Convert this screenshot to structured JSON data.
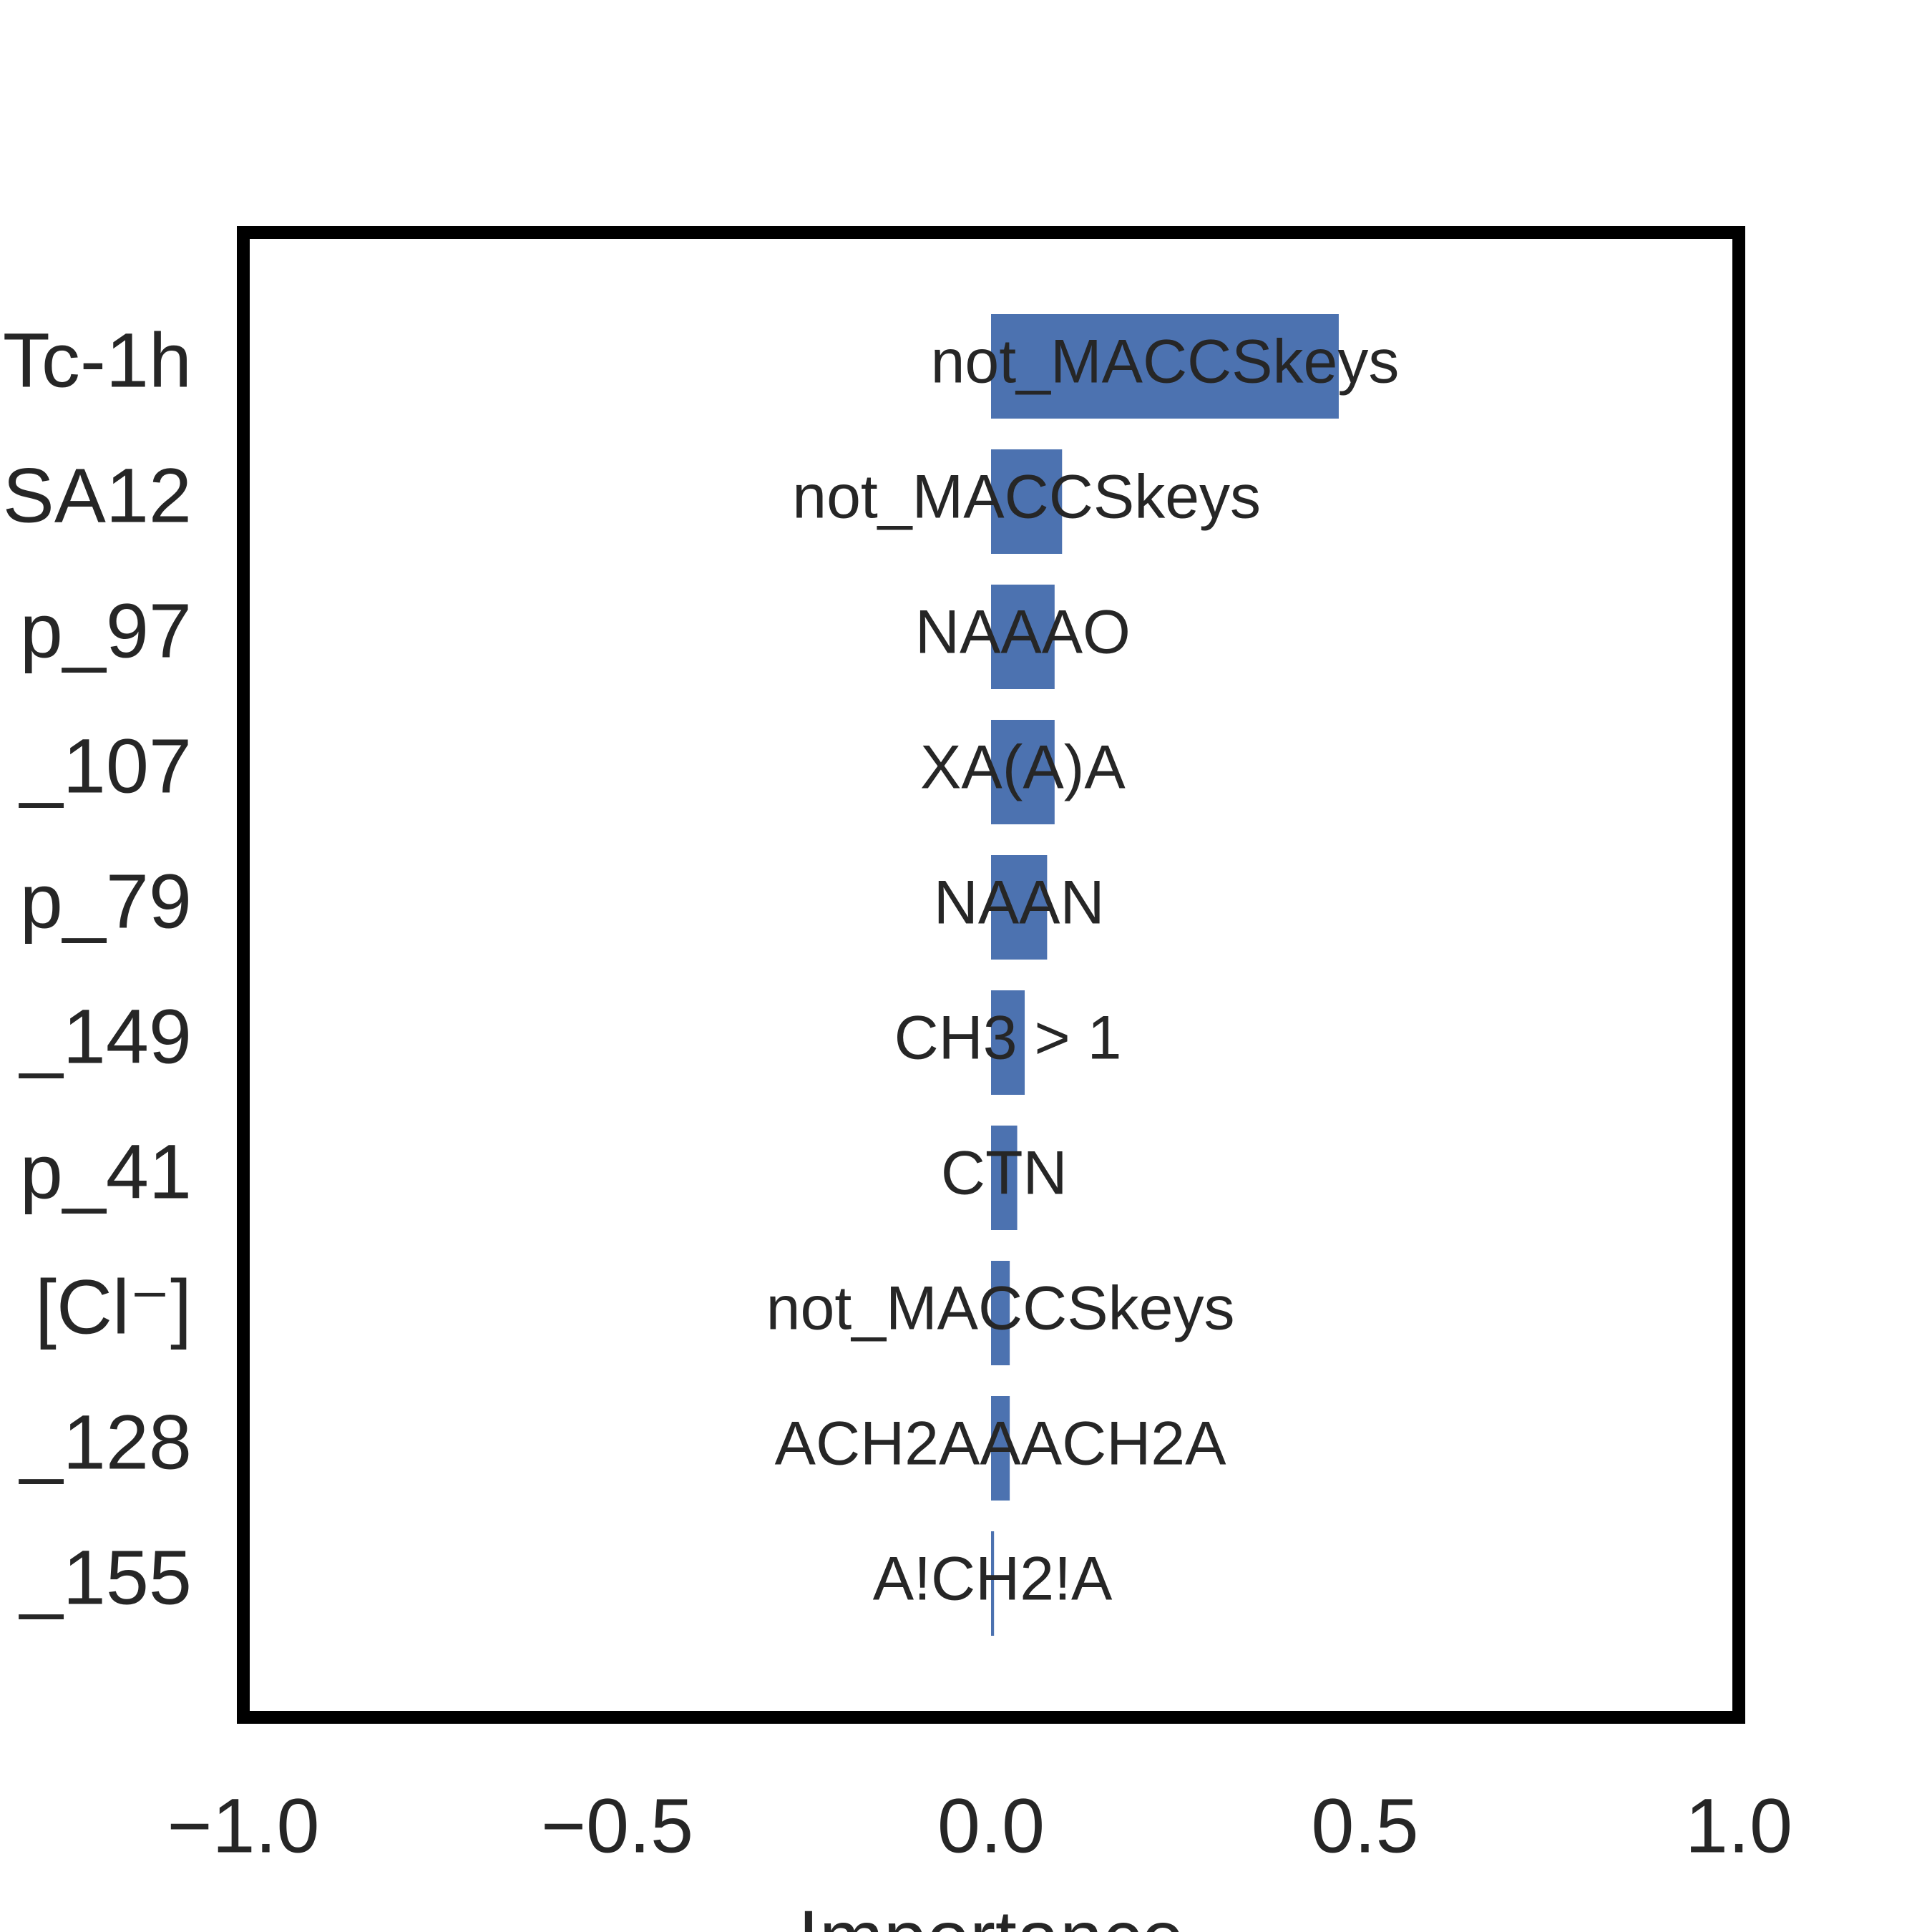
{
  "chart_data": {
    "type": "bar",
    "orientation": "horizontal",
    "title": "",
    "xlabel": "Importance",
    "ylabel": "",
    "xlim": [
      -1.0,
      1.0
    ],
    "xticks": [
      -1.0,
      -0.5,
      0.0,
      0.5,
      1.0
    ],
    "xtick_labels": [
      "−1.0",
      "−0.5",
      "0.0",
      "0.5",
      "1.0"
    ],
    "grid": false,
    "legend": "none",
    "bar_color": "#4c72b0",
    "categories": [
      "Tc-1h",
      "SA12",
      "p_97",
      "_107",
      "p_79",
      "_149",
      "p_41",
      "[Cl⁻]",
      "_128",
      "_155"
    ],
    "values": [
      0.465,
      0.095,
      0.085,
      0.085,
      0.075,
      0.045,
      0.035,
      0.025,
      0.025,
      0.004
    ],
    "bar_labels": [
      "not_MACCSkeys",
      "not_MACCSkeys",
      "NAAAO",
      "XA(A)A",
      "NAAN",
      "CH3 > 1",
      "CTN",
      "not_MACCSkeys",
      "ACH2AAACH2A",
      "A!CH2!A"
    ]
  }
}
